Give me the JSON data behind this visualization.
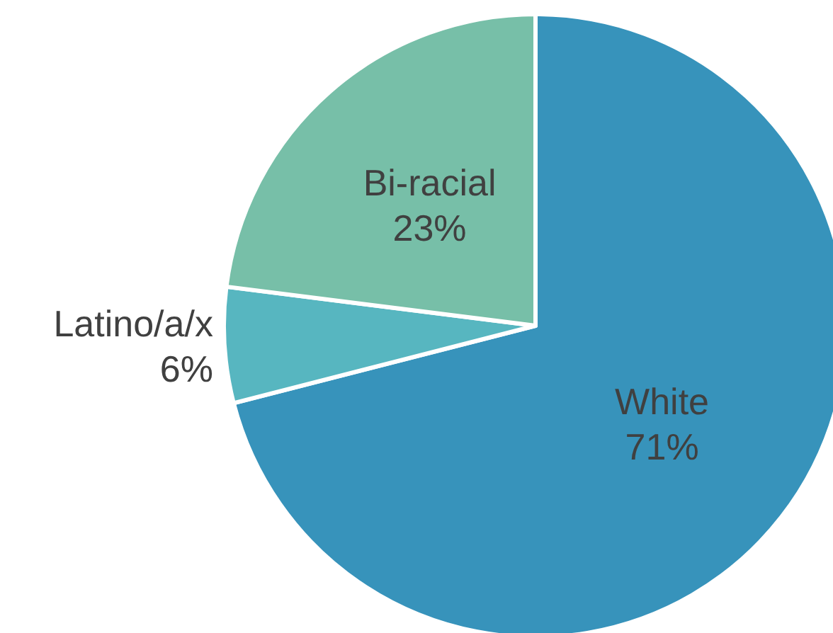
{
  "chart_data": {
    "type": "pie",
    "categories": [
      "White",
      "Latino/a/x",
      "Bi-racial"
    ],
    "values": [
      71,
      6,
      23
    ],
    "colors": [
      "#3793bb",
      "#57b6c0",
      "#77bfa8"
    ],
    "value_labels": [
      "71%",
      "6%",
      "23%"
    ],
    "legend": false
  }
}
